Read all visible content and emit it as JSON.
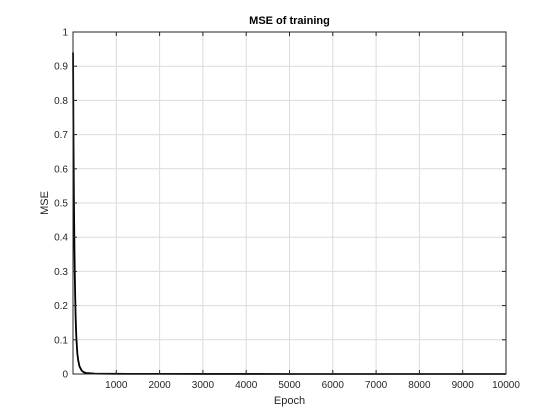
{
  "chart_data": {
    "type": "line",
    "title": "MSE of training",
    "xlabel": "Epoch",
    "ylabel": "MSE",
    "xlim": [
      0,
      10000
    ],
    "ylim": [
      0,
      1
    ],
    "x_ticks": [
      1000,
      2000,
      3000,
      4000,
      5000,
      6000,
      7000,
      8000,
      9000,
      10000
    ],
    "x_tick_labels": [
      "1000",
      "2000",
      "3000",
      "4000",
      "5000",
      "6000",
      "7000",
      "8000",
      "9000",
      "10000"
    ],
    "y_ticks": [
      0,
      0.1,
      0.2,
      0.3,
      0.4,
      0.5,
      0.6,
      0.7,
      0.8,
      0.9,
      1
    ],
    "y_tick_labels": [
      "0",
      "0.1",
      "0.2",
      "0.3",
      "0.4",
      "0.5",
      "0.6",
      "0.7",
      "0.8",
      "0.9",
      "1"
    ],
    "grid": true,
    "legend": "none",
    "series": [
      {
        "color": "#000000",
        "x": [
          1,
          10,
          20,
          30,
          40,
          50,
          60,
          70,
          80,
          100,
          120,
          150,
          200,
          250,
          300,
          400,
          500,
          1000,
          2000,
          3000,
          4000,
          5000,
          6000,
          7000,
          8000,
          9000,
          10000
        ],
        "y": [
          0.94,
          0.7,
          0.52,
          0.4,
          0.3,
          0.23,
          0.17,
          0.13,
          0.1,
          0.06,
          0.04,
          0.022,
          0.01,
          0.005,
          0.003,
          0.002,
          0.001,
          0.0005,
          0.0003,
          0.0002,
          0.0002,
          0.0001,
          0.0001,
          0.0001,
          0.0001,
          0.0001,
          0.0001
        ]
      }
    ]
  }
}
